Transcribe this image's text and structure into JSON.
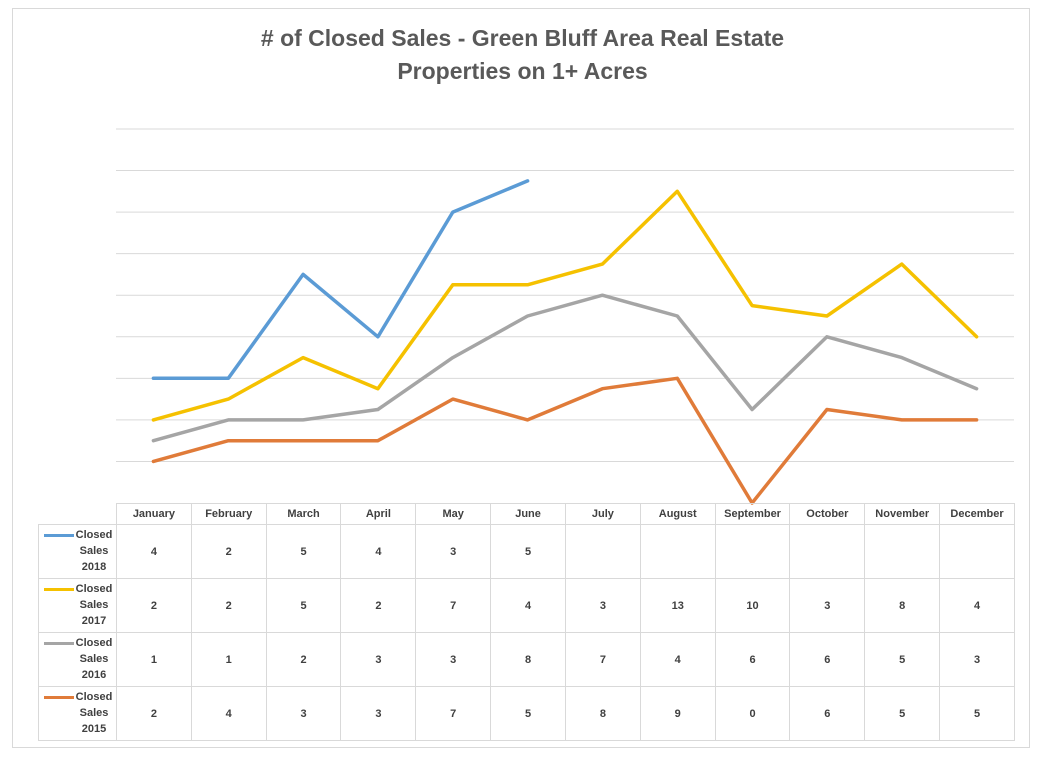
{
  "chart_data": {
    "type": "line",
    "title": "# of Closed Sales - Green Bluff Area Real Estate",
    "subtitle": "Properties on 1+ Acres",
    "categories": [
      "January",
      "February",
      "March",
      "April",
      "May",
      "June",
      "July",
      "August",
      "September",
      "October",
      "November",
      "December"
    ],
    "ylim": [
      0,
      15
    ],
    "grid": true,
    "legend": "data-table-left",
    "series": [
      {
        "name": "Closed Sales 2018",
        "color": "#5b9bd5",
        "values": [
          4,
          2,
          5,
          4,
          3,
          5,
          null,
          null,
          null,
          null,
          null,
          null
        ]
      },
      {
        "name": "Closed Sales 2017",
        "color": "#f5c100",
        "values": [
          2,
          2,
          5,
          2,
          7,
          4,
          3,
          13,
          10,
          3,
          8,
          4
        ]
      },
      {
        "name": "Closed Sales 2016",
        "color": "#a5a5a5",
        "values": [
          1,
          1,
          2,
          3,
          3,
          8,
          7,
          4,
          6,
          6,
          5,
          3
        ]
      },
      {
        "name": "Closed Sales 2015",
        "color": "#e07b39",
        "values": [
          2,
          4,
          3,
          3,
          7,
          5,
          8,
          9,
          0,
          6,
          5,
          5
        ]
      }
    ],
    "plotted_lines": [
      [
        4,
        4,
        9,
        6,
        12,
        13.5,
        null,
        null,
        null,
        null,
        null,
        null
      ],
      [
        2,
        3,
        5,
        3.5,
        8.5,
        8.5,
        9.5,
        13,
        7.5,
        7,
        9.5,
        6
      ],
      [
        1,
        2,
        2,
        2.5,
        5,
        7,
        8,
        7,
        2.5,
        6,
        5,
        3.5
      ],
      [
        0,
        1,
        1,
        1,
        3,
        2,
        3.5,
        4,
        -2,
        2.5,
        2,
        2
      ]
    ]
  }
}
